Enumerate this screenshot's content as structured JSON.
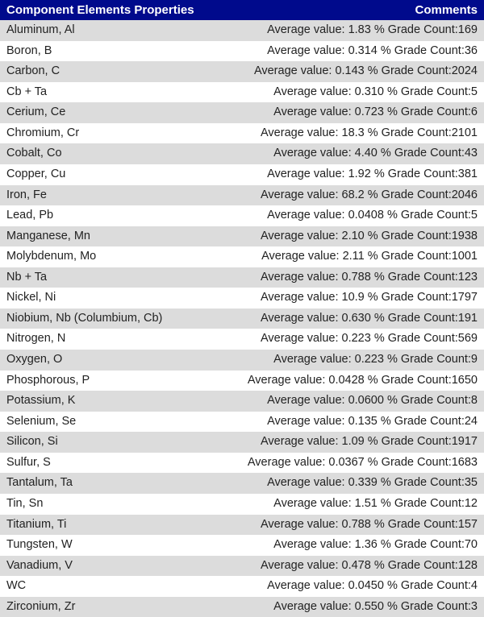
{
  "header": {
    "left": "Component Elements Properties",
    "right": "Comments",
    "bg_color": "#000a8c",
    "text_color": "#ffffff"
  },
  "row_colors": {
    "even": "#dcdcdc",
    "odd": "#ffffff"
  },
  "rows": [
    {
      "name": "Aluminum, Al",
      "comment": "Average value: 1.83 % Grade Count:169"
    },
    {
      "name": "Boron, B",
      "comment": "Average value: 0.314 % Grade Count:36"
    },
    {
      "name": "Carbon, C",
      "comment": "Average value: 0.143 % Grade Count:2024"
    },
    {
      "name": "Cb + Ta",
      "comment": "Average value: 0.310 % Grade Count:5"
    },
    {
      "name": "Cerium, Ce",
      "comment": "Average value: 0.723 % Grade Count:6"
    },
    {
      "name": "Chromium, Cr",
      "comment": "Average value: 18.3 % Grade Count:2101"
    },
    {
      "name": "Cobalt, Co",
      "comment": "Average value: 4.40 % Grade Count:43"
    },
    {
      "name": "Copper, Cu",
      "comment": "Average value: 1.92 % Grade Count:381"
    },
    {
      "name": "Iron, Fe",
      "comment": "Average value: 68.2 % Grade Count:2046"
    },
    {
      "name": "Lead, Pb",
      "comment": "Average value: 0.0408 % Grade Count:5"
    },
    {
      "name": "Manganese, Mn",
      "comment": "Average value: 2.10 % Grade Count:1938"
    },
    {
      "name": "Molybdenum, Mo",
      "comment": "Average value: 2.11 % Grade Count:1001"
    },
    {
      "name": "Nb + Ta",
      "comment": "Average value: 0.788 % Grade Count:123"
    },
    {
      "name": "Nickel, Ni",
      "comment": "Average value: 10.9 % Grade Count:1797"
    },
    {
      "name": "Niobium, Nb (Columbium, Cb)",
      "comment": "Average value: 0.630 % Grade Count:191"
    },
    {
      "name": "Nitrogen, N",
      "comment": "Average value: 0.223 % Grade Count:569"
    },
    {
      "name": "Oxygen, O",
      "comment": "Average value: 0.223 % Grade Count:9"
    },
    {
      "name": "Phosphorous, P",
      "comment": "Average value: 0.0428 % Grade Count:1650"
    },
    {
      "name": "Potassium, K",
      "comment": "Average value: 0.0600 % Grade Count:8"
    },
    {
      "name": "Selenium, Se",
      "comment": "Average value: 0.135 % Grade Count:24"
    },
    {
      "name": "Silicon, Si",
      "comment": "Average value: 1.09 % Grade Count:1917"
    },
    {
      "name": "Sulfur, S",
      "comment": "Average value: 0.0367 % Grade Count:1683"
    },
    {
      "name": "Tantalum, Ta",
      "comment": "Average value: 0.339 % Grade Count:35"
    },
    {
      "name": "Tin, Sn",
      "comment": "Average value: 1.51 % Grade Count:12"
    },
    {
      "name": "Titanium, Ti",
      "comment": "Average value: 0.788 % Grade Count:157"
    },
    {
      "name": "Tungsten, W",
      "comment": "Average value: 1.36 % Grade Count:70"
    },
    {
      "name": "Vanadium, V",
      "comment": "Average value: 0.478 % Grade Count:128"
    },
    {
      "name": "WC",
      "comment": "Average value: 0.0450 % Grade Count:4"
    },
    {
      "name": "Zirconium, Zr",
      "comment": "Average value: 0.550 % Grade Count:3"
    }
  ]
}
